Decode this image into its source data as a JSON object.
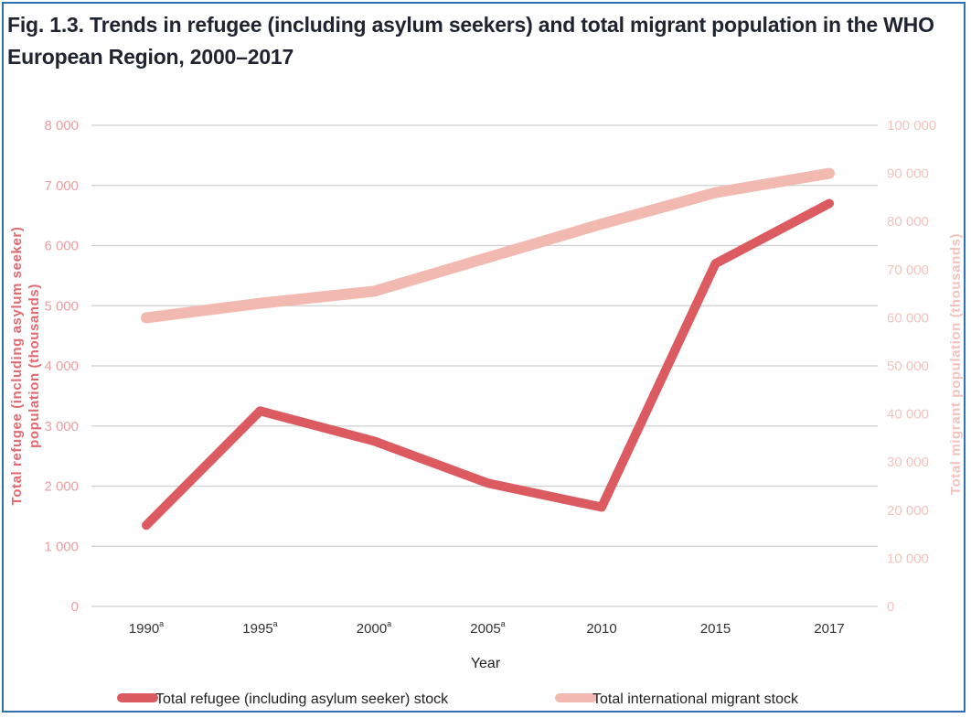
{
  "title": "Fig. 1.3. Trends in refugee (including asylum seekers) and total migrant population in the WHO European Region, 2000–2017",
  "chart_data": {
    "type": "line",
    "title": "Fig. 1.3. Trends in refugee (including asylum seekers) and total migrant population in the WHO European Region, 2000–2017",
    "categories": [
      {
        "label": "1990",
        "sup": "a"
      },
      {
        "label": "1995",
        "sup": "a"
      },
      {
        "label": "2000",
        "sup": "a"
      },
      {
        "label": "2005",
        "sup": "a"
      },
      {
        "label": "2010",
        "sup": ""
      },
      {
        "label": "2015",
        "sup": ""
      },
      {
        "label": "2017",
        "sup": ""
      }
    ],
    "xlabel": "Year",
    "ylabel_left_lines": [
      "Total refugee (including asylum seeker)",
      "population (thousands)"
    ],
    "ylabel_right": "Total migrant population (thousands)",
    "ylim_left": [
      0,
      8000
    ],
    "ylim_right": [
      0,
      100000
    ],
    "yticks_left": [
      "0",
      "1 000",
      "2 000",
      "3 000",
      "4 000",
      "5 000",
      "6 000",
      "7 000",
      "8 000"
    ],
    "yticks_right": [
      "0",
      "10 000",
      "20 000",
      "30 000",
      "40 000",
      "50 000",
      "60 000",
      "70 000",
      "80 000",
      "90 000",
      "100 000"
    ],
    "grid": true,
    "legend_position": "bottom",
    "series": [
      {
        "name": "Total refugee (including asylum seeker) stock",
        "axis": "left",
        "color": "#dc5b61",
        "values": [
          1350,
          3250,
          2750,
          2050,
          1650,
          5700,
          6700
        ]
      },
      {
        "name": "Total international migrant stock",
        "axis": "right",
        "color": "#f2b9b0",
        "values": [
          60000,
          63000,
          65500,
          72500,
          79500,
          86000,
          90000
        ]
      }
    ]
  }
}
